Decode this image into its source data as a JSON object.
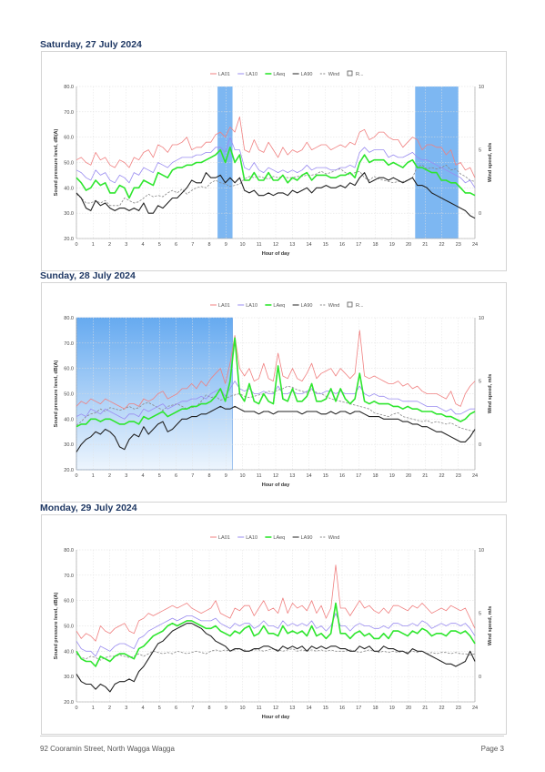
{
  "charts": [
    {
      "title": "Saturday, 27 July 2024",
      "legend": [
        "LA01",
        "LA10",
        "LAeq",
        "LA90",
        "Wind",
        "R..."
      ],
      "highlights": [
        [
          8.5,
          9.4
        ],
        [
          20.4,
          23.0
        ]
      ],
      "highlight_style": "solid",
      "la01": [
        51,
        52,
        50,
        49,
        54,
        51,
        52,
        49,
        48,
        51,
        50,
        48,
        52,
        51,
        54,
        55,
        52,
        57,
        56,
        54,
        57,
        57,
        58,
        60,
        55,
        56,
        56,
        58,
        58,
        61,
        62,
        60,
        64,
        62,
        68,
        55,
        54,
        59,
        55,
        54,
        58,
        55,
        52,
        56,
        53,
        55,
        54,
        55,
        58,
        55,
        56,
        57,
        57,
        55,
        56,
        57,
        56,
        58,
        57,
        62,
        63,
        59,
        60,
        62,
        62,
        60,
        59,
        59,
        56,
        58,
        60,
        59,
        55,
        57,
        57,
        56,
        56,
        53,
        55,
        49,
        50,
        47,
        48,
        44
      ],
      "la10": [
        47,
        46,
        44,
        43,
        47,
        45,
        46,
        43,
        42,
        45,
        44,
        42,
        46,
        45,
        48,
        47,
        46,
        50,
        49,
        48,
        50,
        51,
        52,
        52,
        52,
        53,
        53,
        54,
        54,
        56,
        56,
        54,
        60,
        55,
        55,
        48,
        47,
        50,
        47,
        46,
        48,
        47,
        46,
        47,
        46,
        47,
        46,
        47,
        49,
        47,
        48,
        48,
        48,
        47,
        47,
        48,
        48,
        49,
        48,
        54,
        56,
        54,
        55,
        55,
        55,
        52,
        53,
        52,
        52,
        53,
        54,
        52,
        51,
        51,
        50,
        49,
        48,
        47,
        46,
        45,
        44,
        42,
        43,
        40
      ],
      "laeq": [
        44,
        42,
        39,
        40,
        43,
        41,
        42,
        38,
        38,
        41,
        40,
        36,
        40,
        40,
        43,
        42,
        41,
        46,
        45,
        44,
        47,
        48,
        48,
        49,
        49,
        50,
        50,
        51,
        52,
        53,
        55,
        50,
        56,
        50,
        53,
        43,
        43,
        46,
        43,
        43,
        46,
        43,
        43,
        45,
        42,
        44,
        43,
        45,
        46,
        43,
        45,
        45,
        45,
        44,
        44,
        45,
        45,
        46,
        44,
        50,
        53,
        50,
        51,
        51,
        51,
        49,
        50,
        49,
        48,
        50,
        51,
        48,
        48,
        47,
        46,
        46,
        43,
        43,
        42,
        42,
        40,
        38,
        38,
        37
      ],
      "la90": [
        38,
        36,
        32,
        31,
        35,
        33,
        34,
        32,
        31,
        32,
        32,
        31,
        32,
        31,
        34,
        30,
        30,
        33,
        32,
        34,
        36,
        36,
        38,
        40,
        43,
        42,
        42,
        46,
        44,
        44,
        45,
        42,
        44,
        42,
        44,
        39,
        38,
        39,
        37,
        37,
        38,
        37,
        38,
        38,
        37,
        39,
        38,
        39,
        40,
        38,
        40,
        40,
        41,
        40,
        40,
        41,
        40,
        42,
        41,
        44,
        46,
        42,
        43,
        44,
        44,
        43,
        44,
        43,
        42,
        43,
        44,
        41,
        41,
        40,
        38,
        37,
        36,
        35,
        34,
        33,
        32,
        31,
        29,
        28
      ],
      "wind": [
        1.5,
        1.2,
        0.8,
        0.8,
        1.0,
        0.8,
        1.0,
        0.6,
        0.6,
        0.6,
        1.2,
        1.0,
        0.8,
        0.9,
        1.2,
        1.5,
        1.3,
        1.4,
        1.3,
        1.6,
        1.8,
        1.6,
        1.9,
        1.5,
        1.8,
        2.0,
        2.1,
        2.0,
        2.4,
        2.6,
        2.4,
        2.3,
        2.1,
        2.2,
        2.3,
        2.7,
        2.9,
        2.8,
        2.9,
        2.8,
        2.7,
        2.9,
        2.8,
        2.9,
        2.8,
        2.8,
        2.9,
        2.9,
        3.0,
        3.0,
        3.1,
        3.3,
        3.1,
        3.2,
        3.4,
        3.5,
        3.2,
        3.0,
        3.2,
        3.3,
        2.8,
        2.6,
        2.9,
        2.7,
        2.6,
        2.5,
        2.4,
        2.5,
        2.5,
        2.6,
        2.8,
        3.7,
        3.8,
        3.5,
        3.6,
        3.5,
        3.6,
        3.8,
        3.4,
        3.5,
        3.1,
        2.9,
        2.6,
        2.5
      ]
    },
    {
      "title": "Sunday, 28 July 2024",
      "legend": [
        "LA01",
        "LA10",
        "LAeq",
        "LA90",
        "Wind",
        "R..."
      ],
      "highlights": [
        [
          0,
          9.4
        ]
      ],
      "highlight_style": "gradient",
      "la01": [
        45,
        47,
        46,
        48,
        47,
        46,
        48,
        47,
        46,
        45,
        44,
        46,
        46,
        45,
        48,
        47,
        48,
        50,
        51,
        48,
        49,
        50,
        52,
        52,
        54,
        52,
        55,
        53,
        56,
        58,
        60,
        54,
        62,
        73,
        60,
        57,
        60,
        55,
        56,
        62,
        56,
        55,
        66,
        57,
        56,
        60,
        56,
        55,
        58,
        62,
        56,
        58,
        59,
        60,
        57,
        60,
        58,
        56,
        58,
        75,
        57,
        56,
        57,
        56,
        55,
        54,
        54,
        55,
        53,
        54,
        52,
        53,
        51,
        50,
        50,
        50,
        49,
        48,
        51,
        46,
        45,
        50,
        53,
        55
      ],
      "la10": [
        41,
        42,
        41,
        44,
        43,
        42,
        44,
        43,
        42,
        41,
        40,
        42,
        42,
        41,
        44,
        43,
        44,
        45,
        46,
        44,
        45,
        46,
        47,
        47,
        48,
        48,
        49,
        48,
        50,
        51,
        52,
        49,
        52,
        55,
        52,
        51,
        52,
        50,
        50,
        51,
        50,
        50,
        53,
        50,
        50,
        51,
        50,
        50,
        51,
        52,
        50,
        50,
        51,
        51,
        50,
        51,
        50,
        50,
        50,
        53,
        50,
        49,
        50,
        49,
        49,
        48,
        48,
        48,
        47,
        47,
        47,
        47,
        46,
        45,
        45,
        45,
        44,
        43,
        44,
        42,
        42,
        43,
        44,
        44
      ],
      "laeq": [
        37,
        38,
        38,
        40,
        40,
        39,
        40,
        40,
        39,
        38,
        38,
        39,
        39,
        38,
        41,
        40,
        41,
        42,
        43,
        41,
        42,
        43,
        44,
        44,
        45,
        45,
        46,
        46,
        47,
        49,
        52,
        47,
        55,
        72,
        50,
        47,
        54,
        47,
        46,
        50,
        47,
        46,
        61,
        48,
        47,
        52,
        47,
        47,
        49,
        54,
        47,
        47,
        48,
        52,
        47,
        52,
        48,
        46,
        48,
        58,
        47,
        46,
        47,
        46,
        46,
        46,
        45,
        45,
        44,
        45,
        44,
        44,
        43,
        43,
        43,
        42,
        42,
        41,
        41,
        40,
        39,
        40,
        42,
        43
      ],
      "la90": [
        27,
        30,
        32,
        33,
        35,
        34,
        36,
        35,
        33,
        29,
        28,
        32,
        34,
        33,
        37,
        34,
        36,
        38,
        39,
        35,
        36,
        38,
        40,
        40,
        41,
        41,
        42,
        42,
        43,
        44,
        45,
        44,
        44,
        45,
        44,
        43,
        43,
        43,
        42,
        43,
        43,
        42,
        43,
        43,
        43,
        43,
        43,
        42,
        43,
        43,
        43,
        42,
        42,
        43,
        42,
        43,
        43,
        42,
        43,
        43,
        42,
        41,
        41,
        41,
        40,
        40,
        40,
        40,
        39,
        39,
        38,
        38,
        37,
        37,
        36,
        35,
        35,
        34,
        33,
        32,
        31,
        31,
        33,
        36
      ],
      "wind": [
        1.5,
        1.8,
        2.2,
        2.4,
        2.5,
        2.8,
        2.6,
        2.9,
        2.8,
        2.7,
        2.8,
        3.0,
        2.8,
        2.9,
        3.2,
        3.3,
        3.1,
        2.9,
        2.7,
        3.0,
        3.1,
        3.2,
        3.0,
        2.8,
        2.9,
        3.0,
        3.4,
        3.9,
        3.7,
        3.8,
        3.5,
        3.6,
        3.8,
        3.9,
        4.0,
        3.8,
        3.7,
        3.8,
        3.9,
        4.0,
        4.2,
        4.1,
        4.3,
        4.4,
        4.6,
        4.5,
        4.3,
        4.2,
        4.1,
        4.3,
        4.1,
        4.0,
        3.8,
        3.6,
        3.5,
        3.4,
        3.3,
        3.2,
        3.1,
        3.0,
        2.9,
        2.8,
        2.5,
        2.4,
        2.3,
        2.2,
        2.4,
        2.5,
        2.2,
        2.1,
        2.0,
        1.9,
        1.8,
        1.9,
        1.7,
        1.8,
        1.7,
        1.6,
        1.7,
        1.5,
        1.3,
        1.2,
        1.1,
        1.0
      ]
    },
    {
      "title": "Monday, 29 July 2024",
      "legend": [
        "LA01",
        "LA10",
        "LAeq",
        "LA90",
        "Wind"
      ],
      "highlights": [],
      "highlight_style": "none",
      "la01": [
        48,
        45,
        47,
        46,
        44,
        50,
        48,
        47,
        49,
        50,
        51,
        48,
        47,
        52,
        53,
        55,
        54,
        55,
        56,
        57,
        58,
        57,
        58,
        59,
        57,
        56,
        55,
        56,
        57,
        60,
        55,
        54,
        53,
        57,
        56,
        58,
        58,
        54,
        57,
        60,
        56,
        57,
        55,
        61,
        55,
        59,
        57,
        58,
        56,
        60,
        55,
        58,
        53,
        57,
        74,
        57,
        57,
        54,
        57,
        60,
        57,
        58,
        56,
        55,
        57,
        55,
        58,
        58,
        57,
        56,
        58,
        57,
        59,
        57,
        55,
        56,
        57,
        56,
        58,
        57,
        56,
        57,
        53,
        49
      ],
      "la10": [
        44,
        41,
        40,
        40,
        38,
        42,
        41,
        40,
        42,
        43,
        43,
        42,
        41,
        45,
        46,
        48,
        49,
        50,
        51,
        52,
        53,
        52,
        53,
        54,
        54,
        53,
        52,
        52,
        52,
        53,
        51,
        50,
        49,
        51,
        50,
        51,
        51,
        49,
        50,
        52,
        50,
        50,
        49,
        52,
        50,
        51,
        50,
        51,
        50,
        52,
        49,
        50,
        48,
        50,
        55,
        50,
        50,
        48,
        50,
        51,
        50,
        50,
        49,
        49,
        50,
        49,
        51,
        51,
        50,
        50,
        51,
        50,
        52,
        51,
        49,
        50,
        51,
        50,
        51,
        51,
        50,
        51,
        49,
        46
      ],
      "laeq": [
        40,
        37,
        36,
        36,
        34,
        38,
        37,
        36,
        38,
        39,
        39,
        38,
        37,
        41,
        42,
        44,
        46,
        47,
        48,
        50,
        51,
        50,
        51,
        52,
        52,
        51,
        50,
        49,
        49,
        50,
        48,
        47,
        46,
        48,
        47,
        49,
        50,
        46,
        47,
        50,
        47,
        47,
        46,
        50,
        47,
        48,
        47,
        48,
        46,
        50,
        46,
        47,
        45,
        47,
        59,
        47,
        47,
        45,
        47,
        48,
        46,
        47,
        45,
        45,
        47,
        45,
        48,
        48,
        47,
        46,
        48,
        47,
        49,
        48,
        46,
        47,
        47,
        46,
        48,
        48,
        47,
        48,
        46,
        43
      ],
      "la90": [
        31,
        28,
        27,
        27,
        25,
        27,
        26,
        24,
        27,
        28,
        28,
        29,
        28,
        32,
        34,
        37,
        40,
        43,
        44,
        46,
        48,
        49,
        50,
        51,
        51,
        50,
        49,
        47,
        46,
        44,
        43,
        42,
        40,
        41,
        41,
        40,
        40,
        41,
        41,
        42,
        42,
        41,
        40,
        42,
        41,
        42,
        41,
        42,
        40,
        42,
        41,
        42,
        41,
        42,
        42,
        41,
        41,
        40,
        40,
        42,
        41,
        42,
        40,
        40,
        42,
        41,
        41,
        40,
        40,
        39,
        41,
        40,
        40,
        39,
        38,
        37,
        36,
        35,
        35,
        34,
        35,
        36,
        40,
        36
      ],
      "wind": [
        1.8,
        1.5,
        1.4,
        1.6,
        1.5,
        1.3,
        1.5,
        1.6,
        1.6,
        1.7,
        1.6,
        1.5,
        1.6,
        1.8,
        1.6,
        1.8,
        2.0,
        1.9,
        1.8,
        1.9,
        1.8,
        2.0,
        1.9,
        1.8,
        1.9,
        2.0,
        1.9,
        1.8,
        2.0,
        2.1,
        2.0,
        2.1,
        2.0,
        2.1,
        2.2,
        2.1,
        2.0,
        2.1,
        2.1,
        2.0,
        2.1,
        2.2,
        2.1,
        2.0,
        2.1,
        2.2,
        2.0,
        2.1,
        2.0,
        2.1,
        2.0,
        2.1,
        2.0,
        2.1,
        2.0,
        2.0,
        2.0,
        2.1,
        2.0,
        1.9,
        2.0,
        2.1,
        2.0,
        1.9,
        2.0,
        1.9,
        2.0,
        1.9,
        2.0,
        1.9,
        2.0,
        1.9,
        2.0,
        1.8,
        1.9,
        1.8,
        1.9,
        1.9,
        1.8,
        1.9,
        1.8,
        1.8,
        1.7,
        1.8
      ]
    }
  ],
  "axes": {
    "ylabel_left": "Sound pressure level, dB(A)",
    "ylabel_right": "Wind speed, m/s",
    "xlabel": "Hour of day",
    "y_ticks": [
      "20.0",
      "30.0",
      "40.0",
      "50.0",
      "60.0",
      "70.0",
      "80.0"
    ],
    "y_right_ticks": [
      "10",
      "5",
      "0"
    ],
    "x_ticks": [
      "0",
      "1",
      "2",
      "3",
      "4",
      "5",
      "6",
      "7",
      "8",
      "9",
      "10",
      "11",
      "12",
      "13",
      "14",
      "15",
      "16",
      "17",
      "18",
      "19",
      "20",
      "21",
      "22",
      "23",
      "24"
    ]
  },
  "colors": {
    "la01": "#f08080",
    "la10": "#9a8cf0",
    "laeq": "#2ee62e",
    "la90": "#222222",
    "wind": "#888888",
    "highlight": "#66aaf0",
    "title": "#1f3864"
  },
  "footer": {
    "address": "92 Cooramin Street, North Wagga Wagga",
    "page": "Page 3"
  }
}
